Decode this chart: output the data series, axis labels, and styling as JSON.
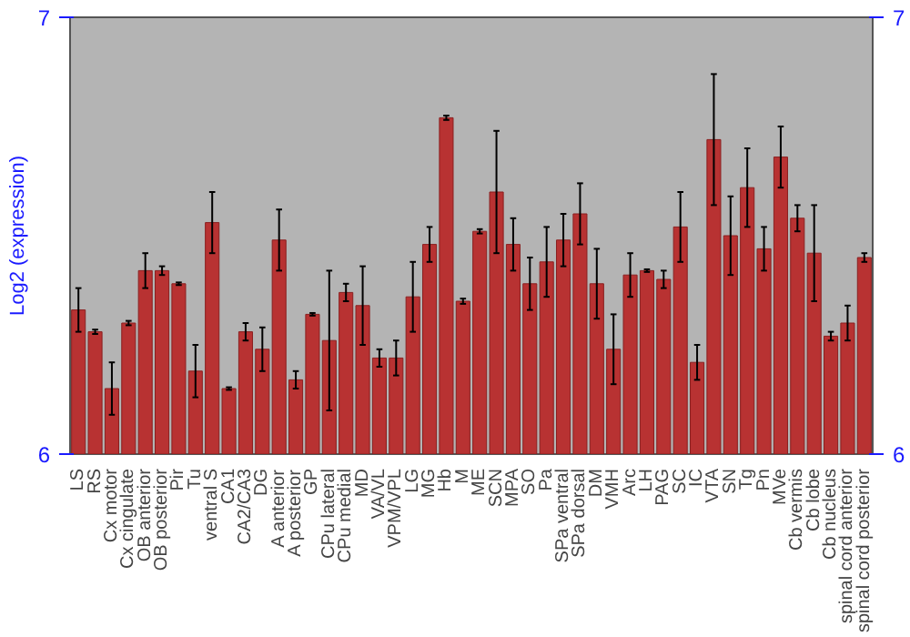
{
  "chart_data": {
    "type": "bar",
    "ylabel": "Log2 (expression)",
    "categories": [
      "LS",
      "RS",
      "Cx motor",
      "Cx cingulate",
      "OB anterior",
      "OB posterior",
      "Pir",
      "Tu",
      "ventral S",
      "CA1",
      "CA2/CA3",
      "DG",
      "A anterior",
      "A posterior",
      "GP",
      "CPu lateral",
      "CPu medial",
      "MD",
      "VA/VL",
      "VPM/VPL",
      "LG",
      "MG",
      "Hb",
      "M",
      "ME",
      "SCN",
      "MPA",
      "SO",
      "Pa",
      "SPa ventral",
      "SPa dorsal",
      "DM",
      "VMH",
      "Arc",
      "LH",
      "PAG",
      "SC",
      "IC",
      "VTA",
      "SN",
      "Tg",
      "Pn",
      "MVe",
      "Cb vermis",
      "Cb lobe",
      "Cb nucleus",
      "spinal cord anterior",
      "spinal cord posterior"
    ],
    "values": [
      6.33,
      6.28,
      6.15,
      6.3,
      6.42,
      6.42,
      6.39,
      6.19,
      6.53,
      6.15,
      6.28,
      6.24,
      6.49,
      6.17,
      6.32,
      6.26,
      6.37,
      6.34,
      6.22,
      6.22,
      6.36,
      6.48,
      6.77,
      6.35,
      6.51,
      6.6,
      6.48,
      6.39,
      6.44,
      6.49,
      6.55,
      6.39,
      6.24,
      6.41,
      6.42,
      6.4,
      6.52,
      6.21,
      6.72,
      6.5,
      6.61,
      6.47,
      6.68,
      6.54,
      6.46,
      6.27,
      6.3,
      6.45
    ],
    "errors": [
      0.05,
      0.005,
      0.06,
      0.005,
      0.04,
      0.01,
      0.003,
      0.06,
      0.07,
      0.003,
      0.02,
      0.05,
      0.07,
      0.02,
      0.003,
      0.16,
      0.02,
      0.09,
      0.02,
      0.04,
      0.08,
      0.04,
      0.005,
      0.006,
      0.005,
      0.14,
      0.06,
      0.06,
      0.08,
      0.06,
      0.07,
      0.08,
      0.08,
      0.05,
      0.003,
      0.02,
      0.08,
      0.04,
      0.15,
      0.09,
      0.09,
      0.05,
      0.07,
      0.03,
      0.11,
      0.01,
      0.04,
      0.01
    ],
    "color": "#b83232",
    "ylim": [
      6,
      7
    ],
    "yticks": [
      6,
      7
    ],
    "y2lim": [
      6,
      7
    ],
    "y2ticks": [
      6,
      7
    ],
    "grid": false
  }
}
